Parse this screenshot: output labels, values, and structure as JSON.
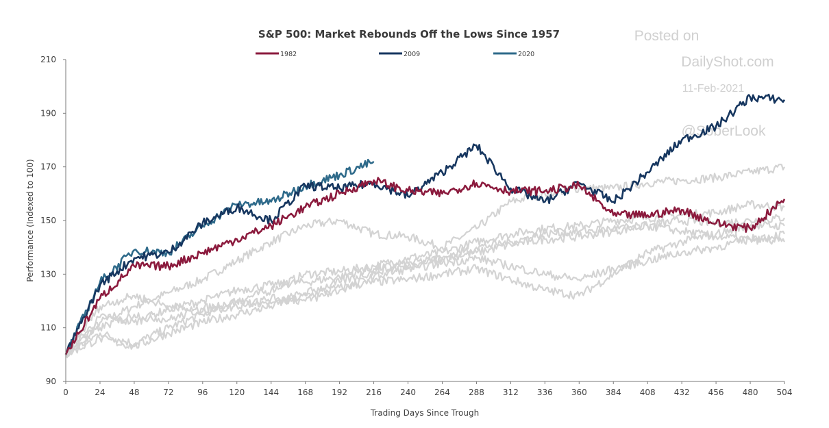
{
  "chart_data": {
    "type": "line",
    "title": "S&P 500: Market Rebounds Off the Lows Since 1957",
    "xlabel": "Trading Days Since Trough",
    "ylabel": "Performance (Indexed to 100)",
    "xlim": [
      0,
      504
    ],
    "ylim": [
      90,
      210
    ],
    "x_ticks": [
      0,
      24,
      48,
      72,
      96,
      120,
      144,
      168,
      192,
      216,
      240,
      264,
      288,
      312,
      336,
      360,
      384,
      408,
      432,
      456,
      480,
      504
    ],
    "y_ticks": [
      90,
      110,
      130,
      150,
      170,
      190,
      210
    ],
    "grid": false,
    "legend_position": "top",
    "x": [
      0,
      24,
      48,
      72,
      96,
      120,
      144,
      168,
      192,
      216,
      240,
      264,
      288,
      312,
      336,
      360,
      384,
      408,
      432,
      456,
      480,
      504
    ],
    "series": [
      {
        "name": "1982",
        "color": "#8b1a3d",
        "highlighted": true,
        "values": [
          100,
          121,
          133,
          133,
          138,
          143,
          148,
          155,
          160,
          165,
          161,
          160,
          164,
          161,
          161,
          163,
          152,
          152,
          154,
          149,
          147,
          158
        ]
      },
      {
        "name": "2009",
        "color": "#16365f",
        "highlighted": true,
        "values": [
          100,
          126,
          136,
          138,
          149,
          155,
          150,
          163,
          162,
          164,
          159,
          168,
          178,
          162,
          157,
          164,
          157,
          168,
          180,
          185,
          196,
          195
        ]
      },
      {
        "name": "2020",
        "color": "#2e6a8a",
        "highlighted": true,
        "values": [
          100,
          127,
          139,
          138,
          148,
          156,
          157,
          163,
          167,
          172,
          null,
          null,
          null,
          null,
          null,
          null,
          null,
          null,
          null,
          null,
          null,
          null
        ]
      },
      {
        "color": "#d3d3d3",
        "highlighted": false,
        "values": [
          100,
          112,
          118,
          123,
          128,
          135,
          142,
          148,
          150,
          145,
          144,
          140,
          147,
          157,
          160,
          162,
          162,
          164,
          165,
          166,
          168,
          170
        ]
      },
      {
        "color": "#d3d3d3",
        "highlighted": false,
        "values": [
          100,
          108,
          104,
          110,
          115,
          120,
          124,
          130,
          131,
          133,
          136,
          138,
          142,
          145,
          147,
          148,
          150,
          151,
          152,
          153,
          156,
          155
        ]
      },
      {
        "color": "#d3d3d3",
        "highlighted": false,
        "values": [
          100,
          114,
          112,
          117,
          120,
          124,
          126,
          127,
          129,
          132,
          134,
          136,
          138,
          141,
          143,
          144,
          146,
          148,
          150,
          149,
          150,
          151
        ]
      },
      {
        "color": "#d3d3d3",
        "highlighted": false,
        "values": [
          100,
          106,
          103,
          108,
          112,
          115,
          118,
          122,
          125,
          127,
          128,
          130,
          132,
          128,
          124,
          122,
          130,
          138,
          142,
          145,
          148,
          148
        ]
      },
      {
        "color": "#d3d3d3",
        "highlighted": false,
        "values": [
          100,
          110,
          115,
          113,
          117,
          120,
          119,
          123,
          127,
          131,
          133,
          136,
          140,
          142,
          145,
          146,
          147,
          148,
          146,
          144,
          143,
          142
        ]
      },
      {
        "color": "#d3d3d3",
        "highlighted": false,
        "values": [
          100,
          118,
          122,
          118,
          116,
          118,
          121,
          120,
          124,
          129,
          132,
          134,
          136,
          133,
          130,
          128,
          132,
          135,
          138,
          140,
          143,
          145
        ]
      }
    ]
  },
  "watermark": {
    "line1": "Posted on",
    "line2": "DailyShot.com",
    "line3": "11-Feb-2021",
    "line4": "@SoberLook"
  }
}
